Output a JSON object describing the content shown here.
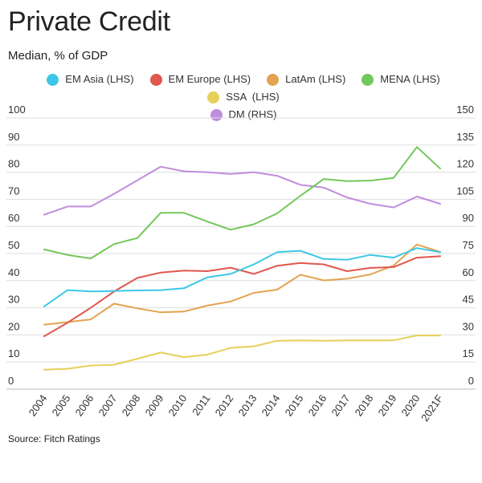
{
  "title": "Private Credit",
  "subtitle": "Median, % of GDP",
  "source": "Source: Fitch Ratings",
  "chart_data": {
    "type": "line",
    "title": "Private Credit",
    "subtitle": "Median, % of GDP",
    "categories": [
      "2004",
      "2005",
      "2006",
      "2007",
      "2008",
      "2009",
      "2010",
      "2011",
      "2012",
      "2013",
      "2014",
      "2015",
      "2016",
      "2017",
      "2018",
      "2019",
      "2020",
      "2021F"
    ],
    "y_left": {
      "min": 0,
      "max": 100,
      "ticks": [
        "0",
        "10",
        "20",
        "30",
        "40",
        "50",
        "60",
        "70",
        "80",
        "90",
        "100"
      ]
    },
    "y_right": {
      "min": 0,
      "max": 150,
      "ticks": [
        "0",
        "15",
        "30",
        "45",
        "60",
        "75",
        "90",
        "105",
        "120",
        "135",
        "150"
      ]
    },
    "grid": true,
    "legend_position": "top",
    "series": [
      {
        "name": "EM Asia (LHS)",
        "axis": "left",
        "color": "#3cc8e6",
        "values": [
          30.5,
          36.5,
          36,
          36.2,
          36.4,
          36.5,
          37.2,
          41.2,
          42.5,
          46,
          50.5,
          51,
          48,
          47.7,
          49.5,
          48.5,
          52,
          50.5
        ]
      },
      {
        "name": "EM Europe (LHS)",
        "axis": "left",
        "color": "#e0574e",
        "values": [
          19.5,
          24.5,
          30,
          36,
          41,
          43,
          43.7,
          43.5,
          44.8,
          42.5,
          45.5,
          46.5,
          46,
          43.5,
          44.7,
          45,
          48.5,
          49
        ]
      },
      {
        "name": "LatAm (LHS)",
        "axis": "left",
        "color": "#e3a34f",
        "values": [
          23.8,
          24.7,
          25.7,
          31.5,
          29.8,
          28.3,
          28.6,
          30.8,
          32.3,
          35.5,
          36.7,
          42.2,
          40.1,
          40.7,
          42.3,
          45.6,
          53.3,
          50.6
        ]
      },
      {
        "name": "MENA (LHS)",
        "axis": "left",
        "color": "#72c859",
        "values": [
          51.5,
          49.5,
          48.2,
          53.5,
          55.7,
          65,
          65,
          61.8,
          58.8,
          60.8,
          64.8,
          71.3,
          77.5,
          76.7,
          76.9,
          77.9,
          89.3,
          81.3
        ]
      },
      {
        "name": "SSA  (LHS)",
        "axis": "left",
        "color": "#e6d05a",
        "values": [
          7.2,
          7.5,
          8.7,
          9,
          11.2,
          13.5,
          11.8,
          12.7,
          15.2,
          15.8,
          17.8,
          18,
          17.8,
          18,
          18,
          18,
          19.8,
          19.8
        ]
      },
      {
        "name": "DM (RHS)",
        "axis": "right",
        "color": "#c08edc",
        "values": [
          96.5,
          101,
          101,
          108,
          115.5,
          123,
          120.5,
          120,
          119,
          120,
          118,
          113,
          111.5,
          106,
          102.5,
          100.5,
          106.5,
          102.5
        ]
      }
    ]
  }
}
